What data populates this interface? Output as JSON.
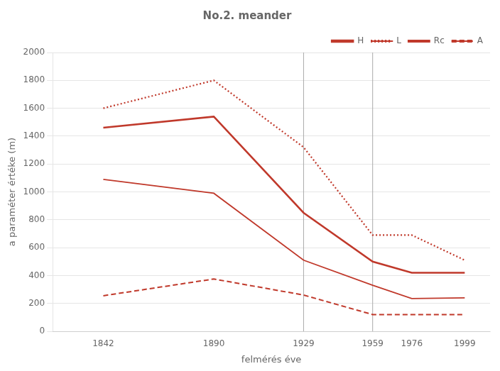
{
  "chart_data": {
    "type": "line",
    "title": "No.2. meander",
    "xlabel": "felmérés éve",
    "ylabel": "a paraméter értéke (m)",
    "x": [
      1842,
      1890,
      1929,
      1959,
      1976,
      1999
    ],
    "series": [
      {
        "name": "H",
        "color": "#c0392b",
        "line_style": "solid",
        "values": [
          1460,
          1540,
          850,
          500,
          420,
          420
        ]
      },
      {
        "name": "L",
        "color": "#c0392b",
        "line_style": "dotted",
        "values": [
          1600,
          1800,
          1320,
          690,
          690,
          510
        ]
      },
      {
        "name": "Rc",
        "color": "#c0392b",
        "line_style": "solid",
        "values": [
          1090,
          990,
          510,
          330,
          235,
          240
        ]
      },
      {
        "name": "A",
        "color": "#c0392b",
        "line_style": "dashed",
        "values": [
          255,
          375,
          260,
          120,
          120,
          120
        ]
      }
    ],
    "xlim": [
      1820,
      2010
    ],
    "xticks": [
      1842,
      1890,
      1929,
      1959,
      1976,
      1999
    ],
    "ylim": [
      0,
      2000
    ],
    "yticks": [
      0,
      200,
      400,
      600,
      800,
      1000,
      1200,
      1400,
      1600,
      1800,
      2000
    ],
    "grid": true,
    "legend": "upper right",
    "annotations": [
      {
        "type": "vline",
        "x": 1929
      },
      {
        "type": "vline",
        "x": 1959
      }
    ]
  }
}
